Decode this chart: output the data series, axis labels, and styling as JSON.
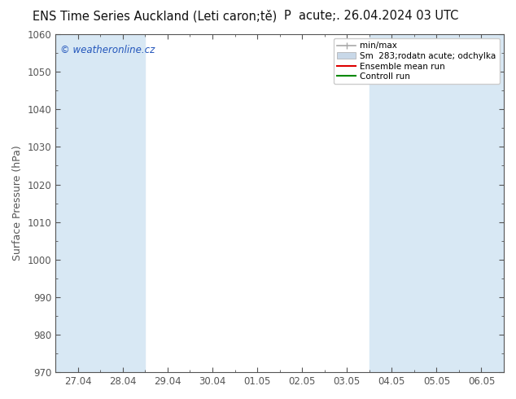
{
  "title_left": "ENS Time Series Auckland (Leti caron;tě)",
  "title_right": "P  acute;. 26.04.2024 03 UTC",
  "ylabel": "Surface Pressure (hPa)",
  "ylim": [
    970,
    1060
  ],
  "yticks": [
    970,
    980,
    990,
    1000,
    1010,
    1020,
    1030,
    1040,
    1050,
    1060
  ],
  "xtick_labels": [
    "27.04",
    "28.04",
    "29.04",
    "30.04",
    "01.05",
    "02.05",
    "03.05",
    "04.05",
    "05.05",
    "06.05"
  ],
  "xtick_positions": [
    0,
    1,
    2,
    3,
    4,
    5,
    6,
    7,
    8,
    9
  ],
  "xlim": [
    -0.5,
    9.5
  ],
  "background_color": "#ffffff",
  "plot_bg_color": "#ffffff",
  "band_color": "#d8e8f4",
  "band_positions": [
    0,
    1,
    7,
    8,
    9
  ],
  "watermark": "© weatheronline.cz",
  "legend_labels": [
    "min/max",
    "Sm  283;rodatn acute; odchylka",
    "Ensemble mean run",
    "Controll run"
  ],
  "legend_line_colors": [
    "#a8a8a8",
    "#c8d8e8",
    "#dd0000",
    "#008800"
  ],
  "title_fontsize": 10.5,
  "ylabel_fontsize": 9,
  "tick_fontsize": 8.5,
  "watermark_color": "#2255bb",
  "watermark_fontsize": 8.5,
  "spine_color": "#555555",
  "tick_color": "#555555"
}
